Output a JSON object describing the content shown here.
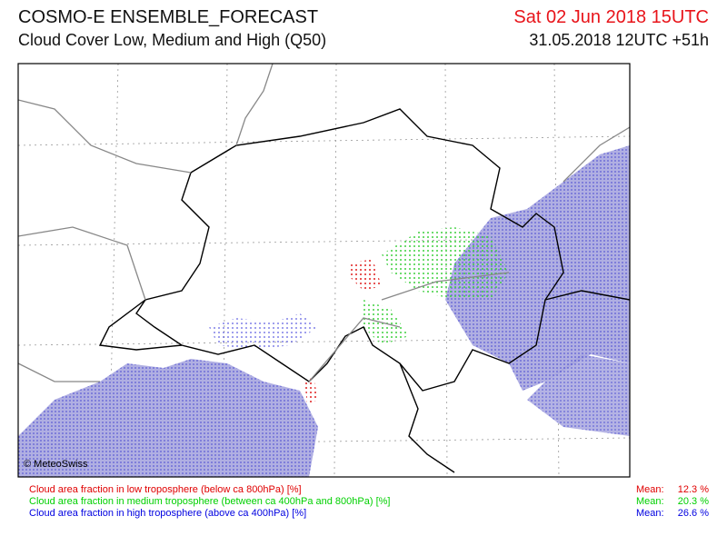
{
  "header": {
    "title": "COSMO-E ENSEMBLE_FORECAST",
    "subtitle": "Cloud Cover Low, Medium and High (Q50)",
    "valid_time": "Sat 02 Jun 2018 15UTC",
    "run_time": "31.05.2018 12UTC +51h"
  },
  "map": {
    "credit": "© MeteoSwiss"
  },
  "legend": [
    {
      "label": "Cloud area fraction in low troposphere (below ca 800hPa) [%]",
      "mean_label": "Mean:",
      "mean": "12.3 %"
    },
    {
      "label": "Cloud area fraction in medium troposphere (between ca 400hPa and 800hPa) [%]",
      "mean_label": "Mean:",
      "mean": "20.3 %"
    },
    {
      "label": "Cloud area fraction in high troposphere (above ca 400hPa) [%]",
      "mean_label": "Mean:",
      "mean": "26.6 %"
    }
  ]
}
